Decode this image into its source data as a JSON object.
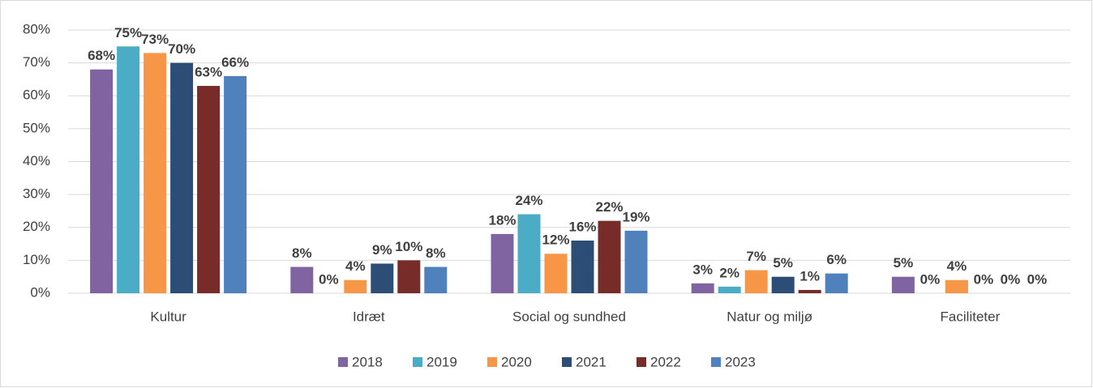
{
  "chart_data": {
    "type": "bar",
    "categories": [
      "Kultur",
      "Idræt",
      "Social og sundhed",
      "Natur og miljø",
      "Faciliteter"
    ],
    "series": [
      {
        "name": "2018",
        "color": "#8064a2",
        "values": [
          68,
          8,
          18,
          3,
          5
        ],
        "value_labels": [
          "68%",
          "8%",
          "18%",
          "3%",
          "5%"
        ]
      },
      {
        "name": "2019",
        "color": "#4bacc6",
        "values": [
          75,
          0,
          24,
          2,
          0
        ],
        "value_labels": [
          "75%",
          "0%",
          "24%",
          "2%",
          "0%"
        ]
      },
      {
        "name": "2020",
        "color": "#f79646",
        "values": [
          73,
          4,
          12,
          7,
          4
        ],
        "value_labels": [
          "73%",
          "4%",
          "12%",
          "7%",
          "4%"
        ]
      },
      {
        "name": "2021",
        "color": "#2c4d75",
        "values": [
          70,
          9,
          16,
          5,
          0
        ],
        "value_labels": [
          "70%",
          "9%",
          "16%",
          "5%",
          "0%"
        ]
      },
      {
        "name": "2022",
        "color": "#772c2a",
        "values": [
          63,
          10,
          22,
          1,
          0
        ],
        "value_labels": [
          "63%",
          "10%",
          "22%",
          "1%",
          "0%"
        ]
      },
      {
        "name": "2023",
        "color": "#4f81bd",
        "values": [
          66,
          8,
          19,
          6,
          0
        ],
        "value_labels": [
          "66%",
          "8%",
          "19%",
          "6%",
          "0%"
        ]
      }
    ],
    "ylim": [
      0,
      80
    ],
    "yticks": [
      {
        "value": 0,
        "label": "0%"
      },
      {
        "value": 10,
        "label": "10%"
      },
      {
        "value": 20,
        "label": "20%"
      },
      {
        "value": 30,
        "label": "30%"
      },
      {
        "value": 40,
        "label": "40%"
      },
      {
        "value": 50,
        "label": "50%"
      },
      {
        "value": 60,
        "label": "60%"
      },
      {
        "value": 70,
        "label": "70%"
      },
      {
        "value": 80,
        "label": "80%"
      }
    ],
    "grid": true,
    "legend": "bottom"
  }
}
